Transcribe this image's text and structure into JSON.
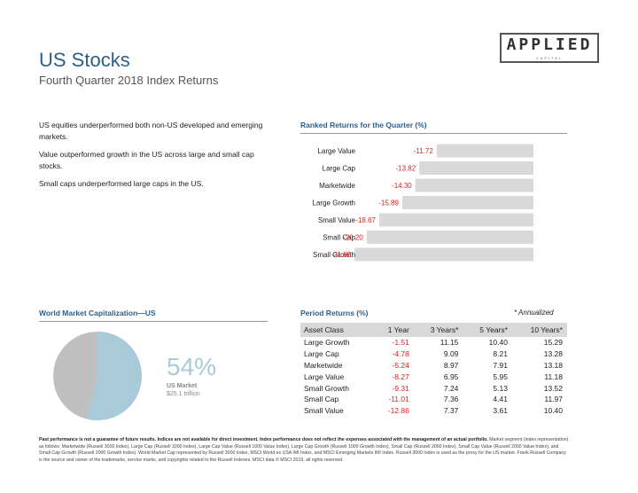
{
  "logo": {
    "main": "APPLIED",
    "sub": "CAPITAL"
  },
  "header": {
    "title": "US Stocks",
    "subtitle": "Fourth Quarter 2018 Index Returns"
  },
  "bullets": [
    "US equities underperformed both non-US developed and emerging markets.",
    "Value outperformed growth in the US across large and small cap stocks.",
    "Small caps underperformed large caps in the US."
  ],
  "ranked": {
    "title": "Ranked Returns for the Quarter (%)"
  },
  "world_cap": {
    "title": "World Market Capitalization—US",
    "percent": "54%",
    "market_label": "US Market",
    "market_value": "$25.1 trillion",
    "share": 0.54
  },
  "period": {
    "title": "Period Returns (%)",
    "note": "* Annualized",
    "headers": [
      "Asset Class",
      "1 Year",
      "3 Years*",
      "5 Years*",
      "10 Years*"
    ],
    "rows": [
      [
        "Large Growth",
        "-1.51",
        "11.15",
        "10.40",
        "15.29"
      ],
      [
        "Large Cap",
        "-4.78",
        "9.09",
        "8.21",
        "13.28"
      ],
      [
        "Marketwide",
        "-5.24",
        "8.97",
        "7.91",
        "13.18"
      ],
      [
        "Large Value",
        "-8.27",
        "6.95",
        "5.95",
        "11.18"
      ],
      [
        "Small Growth",
        "-9.31",
        "7.24",
        "5.13",
        "13.52"
      ],
      [
        "Small Cap",
        "-11.01",
        "7.36",
        "4.41",
        "11.97"
      ],
      [
        "Small Value",
        "-12.86",
        "7.37",
        "3.61",
        "10.40"
      ]
    ]
  },
  "footer": {
    "bold": "Past performance is not a guarantee of future results. Indices are not available for direct investment. Index performance does not reflect the expenses associated with the management of an actual portfolio.",
    "text": "Market segment (index representation) as follows: Marketwide (Russell 3000 Index), Large Cap (Russell 1000 Index), Large Cap Value (Russell 1000 Value Index), Large Cap Growth (Russell 1000 Growth Index), Small Cap (Russell 2000 Index), Small Cap Value (Russell 2000 Value Index), and Small Cap Growth (Russell 2000 Growth Index). World Market Cap represented by Russell 3000 Index, MSCI World ex USA IMI Index, and MSCI Emerging Markets IMI Index. Russell 3000 Index is used as the proxy for the US market. Frank Russell Company is the source and owner of the trademarks, service marks, and copyrights related to the Russell Indexes. MSCI data © MSCI 2019, all rights reserved."
  },
  "colors": {
    "title": "#2c5f8a",
    "negative": "#e02020",
    "bar": "#d9d9d9",
    "pie_us": "#a9cad8",
    "pie_other": "#c0c0c0"
  },
  "chart_data": {
    "type": "bar",
    "orientation": "horizontal",
    "categories": [
      "Large Value",
      "Large Cap",
      "Marketwide",
      "Large Growth",
      "Small Value",
      "Small Cap",
      "Small Growth"
    ],
    "values": [
      -11.72,
      -13.82,
      -14.3,
      -15.89,
      -18.67,
      -20.2,
      -21.65
    ],
    "labels": [
      "-11.72",
      "-13.82",
      "-14.30",
      "-15.89",
      "-18.67",
      "-20.20",
      "-21.65"
    ]
  }
}
